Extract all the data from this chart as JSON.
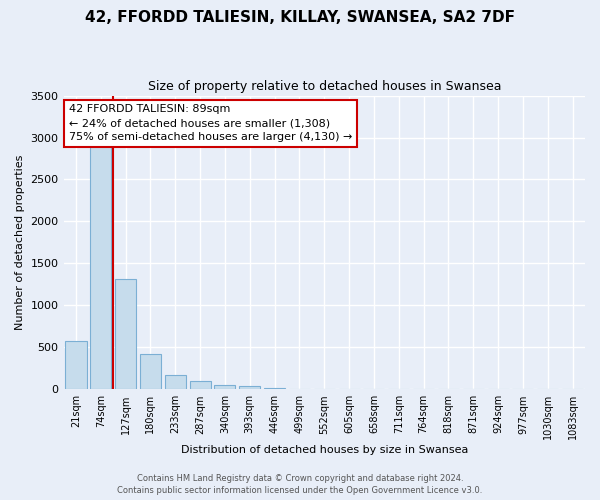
{
  "title": "42, FFORDD TALIESIN, KILLAY, SWANSEA, SA2 7DF",
  "subtitle": "Size of property relative to detached houses in Swansea",
  "xlabel": "Distribution of detached houses by size in Swansea",
  "ylabel": "Number of detached properties",
  "bar_labels": [
    "21sqm",
    "74sqm",
    "127sqm",
    "180sqm",
    "233sqm",
    "287sqm",
    "340sqm",
    "393sqm",
    "446sqm",
    "499sqm",
    "552sqm",
    "605sqm",
    "658sqm",
    "711sqm",
    "764sqm",
    "818sqm",
    "871sqm",
    "924sqm",
    "977sqm",
    "1030sqm",
    "1083sqm"
  ],
  "bar_values": [
    570,
    2920,
    1310,
    415,
    175,
    95,
    50,
    35,
    20,
    0,
    0,
    0,
    0,
    0,
    0,
    0,
    0,
    0,
    0,
    0,
    0
  ],
  "bar_color": "#c6dcec",
  "bar_edge_color": "#7bafd4",
  "ylim": [
    0,
    3500
  ],
  "yticks": [
    0,
    500,
    1000,
    1500,
    2000,
    2500,
    3000,
    3500
  ],
  "property_line_color": "#cc0000",
  "property_bin_index": 1,
  "annotation_title": "42 FFORDD TALIESIN: 89sqm",
  "annotation_line1": "← 24% of detached houses are smaller (1,308)",
  "annotation_line2": "75% of semi-detached houses are larger (4,130) →",
  "annotation_box_color": "#ffffff",
  "annotation_border_color": "#cc0000",
  "footer_line1": "Contains HM Land Registry data © Crown copyright and database right 2024.",
  "footer_line2": "Contains public sector information licensed under the Open Government Licence v3.0.",
  "background_color": "#e8eef8",
  "grid_color": "#ffffff",
  "title_fontsize": 11,
  "subtitle_fontsize": 9,
  "xlabel_fontsize": 8,
  "ylabel_fontsize": 8,
  "tick_fontsize": 7,
  "ytick_fontsize": 8,
  "annotation_fontsize": 8,
  "footer_fontsize": 6
}
